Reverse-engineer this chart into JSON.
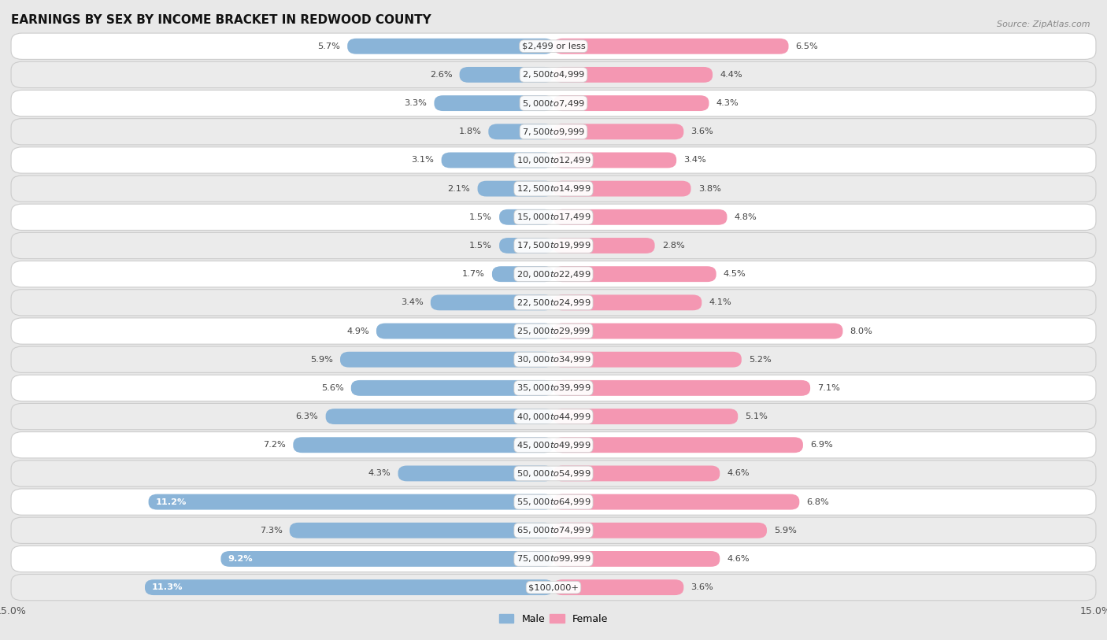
{
  "title": "EARNINGS BY SEX BY INCOME BRACKET IN REDWOOD COUNTY",
  "source": "Source: ZipAtlas.com",
  "categories": [
    "$2,499 or less",
    "$2,500 to $4,999",
    "$5,000 to $7,499",
    "$7,500 to $9,999",
    "$10,000 to $12,499",
    "$12,500 to $14,999",
    "$15,000 to $17,499",
    "$17,500 to $19,999",
    "$20,000 to $22,499",
    "$22,500 to $24,999",
    "$25,000 to $29,999",
    "$30,000 to $34,999",
    "$35,000 to $39,999",
    "$40,000 to $44,999",
    "$45,000 to $49,999",
    "$50,000 to $54,999",
    "$55,000 to $64,999",
    "$65,000 to $74,999",
    "$75,000 to $99,999",
    "$100,000+"
  ],
  "male_values": [
    5.7,
    2.6,
    3.3,
    1.8,
    3.1,
    2.1,
    1.5,
    1.5,
    1.7,
    3.4,
    4.9,
    5.9,
    5.6,
    6.3,
    7.2,
    4.3,
    11.2,
    7.3,
    9.2,
    11.3
  ],
  "female_values": [
    6.5,
    4.4,
    4.3,
    3.6,
    3.4,
    3.8,
    4.8,
    2.8,
    4.5,
    4.1,
    8.0,
    5.2,
    7.1,
    5.1,
    6.9,
    4.6,
    6.8,
    5.9,
    4.6,
    3.6
  ],
  "male_color": "#8ab4d8",
  "female_color": "#f497b2",
  "highlight_male_color": "#5a9fd4",
  "highlight_female_color": "#f06090",
  "background_color": "#e8e8e8",
  "row_color_odd": "#ffffff",
  "row_color_even": "#ebebeb",
  "xlim": 15.0,
  "male_legend": "Male",
  "female_legend": "Female",
  "label_threshold": 8.5
}
